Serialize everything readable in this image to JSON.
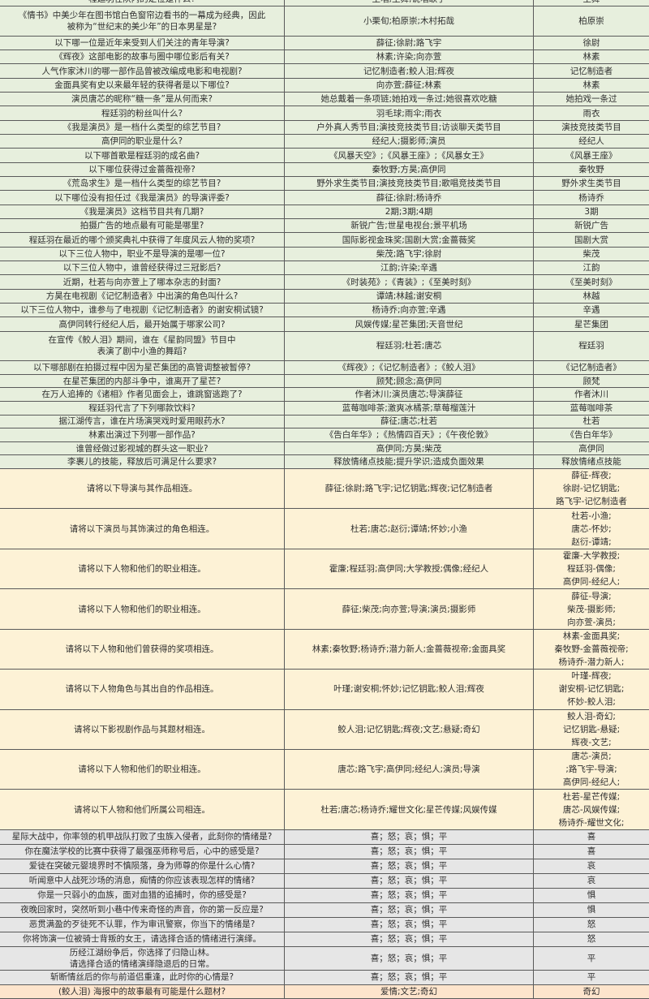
{
  "sections": [
    {
      "id": "green",
      "color": "#e7efdd",
      "rows": [
        {
          "q": "程廷羽在队内的定位是什么?",
          "options": "主唱;主舞;说唱歌手",
          "answer": [
            "主舞"
          ]
        },
        {
          "q": "《情书》中美少年在图书馆白色窗帘边看书的一幕成为经典，因此\n被称为“世纪末的美少年”的日本男星是?",
          "options": "小栗旬;柏原崇;木村拓哉",
          "answer": [
            "柏原崇"
          ]
        },
        {
          "q": "以下哪一位是近年来受到人们关注的青年导演?",
          "options": "薛征;徐尉;路飞宇",
          "answer": [
            "徐尉"
          ]
        },
        {
          "q": "《辉夜》这部电影的故事与圈中哪位影后有关?",
          "options": "林素;许染;向亦萱",
          "answer": [
            "林素"
          ]
        },
        {
          "q": "人气作家沐川的哪一部作品曾被改编成电影和电视剧?",
          "options": "记忆制造者;鲛人泪;辉夜",
          "answer": [
            "记忆制造者"
          ]
        },
        {
          "q": "金面具奖有史以来最年轻的获得者是以下哪位?",
          "options": "向亦萱;薛征;林素",
          "answer": [
            "林素"
          ]
        },
        {
          "q": "演员唐芯的昵称“糖一条”是从何而来?",
          "options": "她总戴着一条项链;她拍戏一条过;她很喜欢吃糖",
          "answer": [
            "她拍戏一条过"
          ]
        },
        {
          "q": "程廷羽的粉丝叫什么?",
          "options": "羽毛球;雨伞;雨衣",
          "answer": [
            "雨衣"
          ]
        },
        {
          "q": "《我是演员》是一档什么类型的综艺节目?",
          "options": "户外真人秀节目;演技竞技类节目;访谈聊天类节目",
          "answer": [
            "演技竞技类节目"
          ]
        },
        {
          "q": "高伊同的职业是什么?",
          "options": "经纪人;摄影师;演员",
          "answer": [
            "经纪人"
          ]
        },
        {
          "q": "以下哪首歌是程廷羽的成名曲?",
          "options": "《风暴天空》;《风暴王座》;《风暴女王》",
          "answer": [
            "《风暴王座》"
          ]
        },
        {
          "q": "以下哪位获得过金蔷薇视帝?",
          "options": "秦牧野;方昊;高伊同",
          "answer": [
            "秦牧野"
          ]
        },
        {
          "q": "《荒岛求生》是一档什么类型的综艺节目?",
          "options": "野外求生类节目;演技竞技类节目;歌唱竞技类节目",
          "answer": [
            "野外求生类节目"
          ]
        },
        {
          "q": "以下哪位没有担任过《我是演员》的导演评委?",
          "options": "薛征;徐尉;杨诗乔",
          "answer": [
            "杨诗乔"
          ]
        },
        {
          "q": "《我是演员》这档节目共有几期?",
          "options": "2期;3期;4期",
          "answer": [
            "3期"
          ]
        },
        {
          "q": "拍摄广告的地点最有可能是哪里?",
          "options": "新锐广告;世星电视台;景平机场",
          "answer": [
            "新锐广告"
          ]
        },
        {
          "q": "程廷羽在最近的哪个颁奖典礼中获得了年度风云人物的奖项?",
          "options": "国际影视金珠奖;国剧大赏;金蔷薇奖",
          "answer": [
            "国剧大赏"
          ]
        },
        {
          "q": "以下三位人物中，职业不是导演的是哪一位?",
          "options": "柴茂;路飞宇;徐尉",
          "answer": [
            "柴茂"
          ]
        },
        {
          "q": "以下三位人物中，谁曾经获得过三冠影后?",
          "options": "江韵;许染;辛遇",
          "answer": [
            "江韵"
          ]
        },
        {
          "q": "近期，杜若与向亦萱上了哪本杂志的封面?",
          "options": "《时装苑》;《青装》;《至美时刻》",
          "answer": [
            "《至美时刻》"
          ]
        },
        {
          "q": "方昊在电视剧《记忆制造者》中出演的角色叫什么?",
          "options": "谭靖;林越;谢安桐",
          "answer": [
            "林越"
          ]
        },
        {
          "q": "以下三位人物中，谁参与了电视剧《记忆制造者》的谢安桐试镜?",
          "options": "杨诗乔;向亦萱;辛遇",
          "answer": [
            "辛遇"
          ]
        },
        {
          "q": "高伊同转行经纪人后，最开始属于哪家公司?",
          "options": "风娱传媒;星芒集团;天音世纪",
          "answer": [
            "星芒集团"
          ]
        },
        {
          "q": "在宣传《鲛人泪》期间，谁在《星韵同盟》节目中\n表演了剧中小渔的舞蹈?",
          "options": "程廷羽;杜若;唐芯",
          "answer": [
            "程廷羽"
          ]
        },
        {
          "q": "以下哪部剧在拍摄过程中因为星芒集团的高管调整被暂停?",
          "options": "《辉夜》;《记忆制造者》;《鲛人泪》",
          "answer": [
            "《记忆制造者》"
          ]
        },
        {
          "q": "在星芒集团的内部斗争中，谁离开了星芒?",
          "options": "顾梵;顾念;高伊同",
          "answer": [
            "顾梵"
          ]
        },
        {
          "q": "在万人追捧的《诸相》作者见面会上，谁跳窗逃跑了?",
          "options": "作者沐川;演员唐芯;导演薛征",
          "answer": [
            "作者沐川"
          ]
        },
        {
          "q": "程廷羽代言了下列哪款饮料?",
          "options": "蓝莓咖啡茶;激爽冰橘茶;草莓榴莲汁",
          "answer": [
            "蓝莓咖啡茶"
          ]
        },
        {
          "q": "据江湖传言，谁在片场演哭戏时爱用眼药水?",
          "options": "薛征;唐芯;杜若",
          "answer": [
            "杜若"
          ]
        },
        {
          "q": "林素出演过下列哪一部作品?",
          "options": "《告白年华》;《热情四百天》;《午夜伦敦》",
          "answer": [
            "《告白年华》"
          ]
        },
        {
          "q": "谁曾经做过影视城的群头这一职业?",
          "options": "高伊同;方昊;柴茂",
          "answer": [
            "高伊同"
          ]
        },
        {
          "q": "李裹儿的技能，释放后可满足什么要求?",
          "options": "释放情绪点技能;提升学识;造成负面效果",
          "answer": [
            "释放情绪点技能"
          ]
        }
      ]
    },
    {
      "id": "yellow",
      "color": "#fdf2d6",
      "rows": [
        {
          "q": "请将以下导演与其作品相连。",
          "options": "薛征;徐尉;路飞宇;记忆钥匙;辉夜;记忆制造者",
          "answer": [
            "薛征-辉夜;",
            "徐尉-记忆钥匙;",
            "路飞宇-记忆制造者"
          ]
        },
        {
          "q": "请将以下演员与其饰演过的角色相连。",
          "options": "杜若;唐芯;赵衍;谭靖;怀妙;小渔",
          "answer": [
            "杜若-小渔;",
            "唐芯-怀妙;",
            "赵衍-谭靖;"
          ]
        },
        {
          "q": "请将以下人物和他们的职业相连。",
          "options": "霍廉;程廷羽;高伊同;大学教授;偶像;经纪人",
          "answer": [
            "霍廉-大学教授;",
            "程廷羽-偶像;",
            "高伊同-经纪人;"
          ]
        },
        {
          "q": "请将以下人物和他们的职业相连。",
          "options": "薛征;柴茂;向亦萱;导演;演员;摄影师",
          "answer": [
            "薛征-导演;",
            "柴茂-摄影师;",
            "向亦萱-演员;"
          ]
        },
        {
          "q": "请将以下人物和他们曾获得的奖项相连。",
          "options": "林素;秦牧野;杨诗乔;潜力新人;金蔷薇视帝;金面具奖",
          "answer": [
            "林素-金面具奖;",
            "秦牧野-金蔷薇视帝;",
            "杨诗乔-潜力新人;"
          ]
        },
        {
          "q": "请将以下人物角色与其出自的作品相连。",
          "options": "叶瑾;谢安桐;怀妙;记忆钥匙;鲛人泪;辉夜",
          "answer": [
            "叶瑾-辉夜;",
            "谢安桐-记忆钥匙;",
            "怀妙-鲛人泪;"
          ]
        },
        {
          "q": "请将以下影视剧作品与其题材相连。",
          "options": "鲛人泪;记忆钥匙;辉夜;文艺;悬疑;奇幻",
          "answer": [
            "鲛人泪-奇幻;",
            "记忆钥匙-悬疑;",
            "辉夜-文艺;"
          ]
        },
        {
          "q": "请将以下人物和他们的职业相连。",
          "options": "唐芯;路飞宇;高伊同;经纪人;演员;导演",
          "answer": [
            "唐芯-演员;",
            ";路飞宇-导演;",
            "高伊同-经纪人;"
          ]
        },
        {
          "q": "请将以下人物和他们所属公司相连。",
          "options": "杜若;唐芯;杨诗乔;耀世文化;星芒传媒;风娱传媒",
          "answer": [
            "杜若-星芒传媒;",
            "唐芯-风娱传媒;",
            "杨诗乔-耀世文化;"
          ]
        }
      ]
    },
    {
      "id": "gray",
      "color": "#e6e6e6",
      "rows": [
        {
          "q": "星际大战中，你率领的机甲战队打败了虫族入侵者，此刻你的情绪是?",
          "options": "喜；怒；哀；惧；平",
          "answer": [
            "喜"
          ]
        },
        {
          "q": "你在魔法学校的比赛中获得了最强巫师称号后，心中的感受是?",
          "options": "喜；怒；哀；惧；平",
          "answer": [
            "喜"
          ]
        },
        {
          "q": "爱徒在突破元婴境界时不慎陨落，身为师尊的你是什么心情?",
          "options": "喜；怒；哀；惧；平",
          "answer": [
            "哀"
          ]
        },
        {
          "q": "听闻意中人战死沙场的消息，痴情的你应该表现怎样的情绪?",
          "options": "喜；怒；哀；惧；平",
          "answer": [
            "哀"
          ]
        },
        {
          "q": "你是一只弱小的血族，面对血猎的追捕时，你的感受是?",
          "options": "喜；怒；哀；惧；平",
          "answer": [
            "惧"
          ]
        },
        {
          "q": "夜晚回家时，突然听到小巷中传来奇怪的声音，你的第一反应是?",
          "options": "喜；怒；哀；惧；平",
          "answer": [
            "惧"
          ]
        },
        {
          "q": "恶贯满盈的歹徒死不认罪，作为审讯警察，你当下的情绪是?",
          "options": "喜；怒；哀；惧；平",
          "answer": [
            "怒"
          ]
        },
        {
          "q": "你将饰演一位被骑士背叛的女王，请选择合适的情绪进行演绎。",
          "options": "喜；怒；哀；惧；平",
          "answer": [
            "怒"
          ]
        },
        {
          "q": "历经江湖纷争后，你选择了归隐山林。\n请选择合适的情绪演绎隐退后的日常。",
          "options": "喜；怒；哀；惧；平",
          "answer": [
            "平"
          ]
        },
        {
          "q": "斩断情丝后的你与前道侣重逢，此时你的心情是?",
          "options": "喜；怒；哀；惧；平",
          "answer": [
            "平"
          ]
        }
      ]
    },
    {
      "id": "orange",
      "color": "#fde4cc",
      "rows": [
        {
          "q": "(鲛人泪) 海报中的故事最有可能是什么题材?",
          "options": "爱情;文艺;奇幻",
          "answer": [
            "奇幻"
          ]
        }
      ]
    }
  ]
}
